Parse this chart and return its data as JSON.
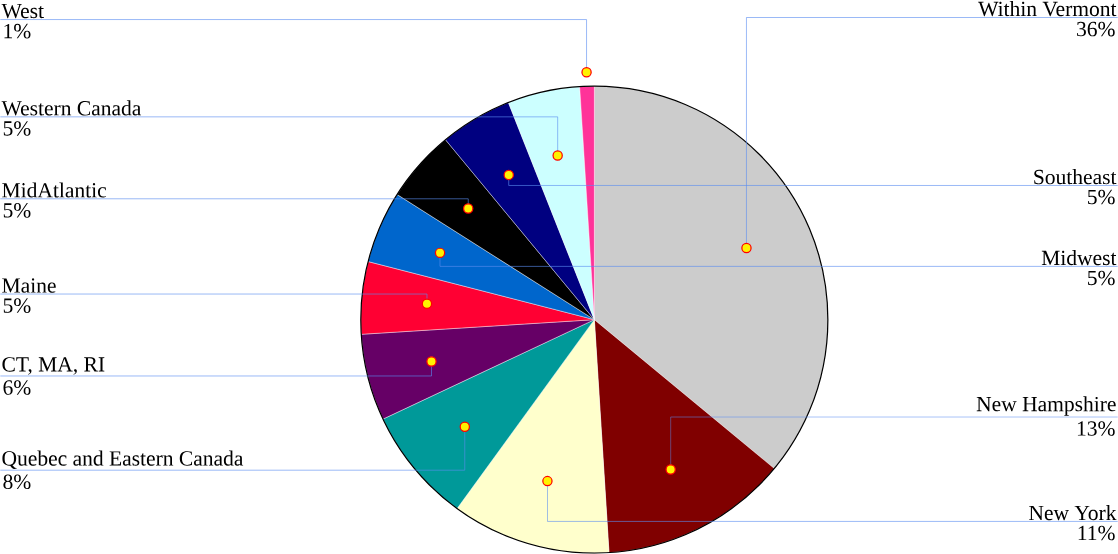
{
  "chart_data": {
    "type": "pie",
    "categories": [
      "Within Vermont",
      "New Hampshire",
      "New York",
      "Quebec and Eastern Canada",
      "CT, MA, RI",
      "Maine",
      "Midwest",
      "MidAtlantic",
      "Southeast",
      "Western Canada",
      "West"
    ],
    "values": [
      36,
      13,
      11,
      8,
      6,
      5,
      5,
      5,
      5,
      5,
      1
    ],
    "colors": [
      "#cccccc",
      "#800000",
      "#ffffcc",
      "#009999",
      "#660066",
      "#ff0033",
      "#0066cc",
      "#000000",
      "#000080",
      "#ccffff",
      "#ff3399"
    ],
    "value_labels": [
      "36%",
      "13%",
      "11%",
      "8%",
      "6%",
      "5%",
      "5%",
      "5%",
      "5%",
      "5%",
      "1%"
    ]
  }
}
